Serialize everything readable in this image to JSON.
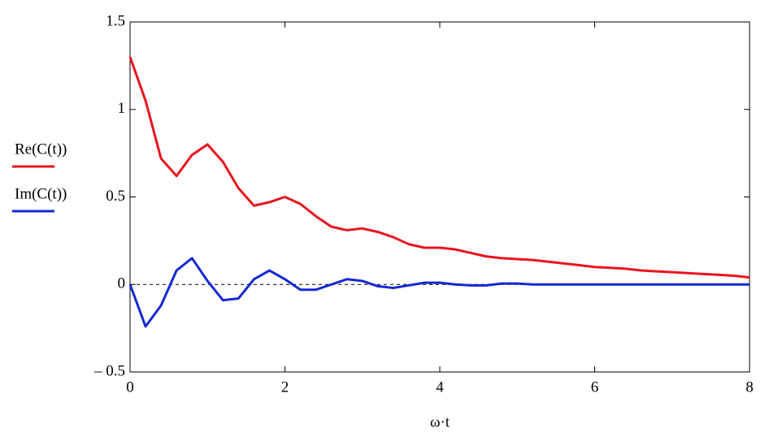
{
  "chart_data": {
    "type": "line",
    "x_label": "ω·t",
    "x": [
      0,
      0.2,
      0.4,
      0.6,
      0.8,
      1,
      1.2,
      1.4,
      1.6,
      1.8,
      2,
      2.2,
      2.4,
      2.6,
      2.8,
      3,
      3.2,
      3.4,
      3.6,
      3.8,
      4,
      4.2,
      4.4,
      4.6,
      4.8,
      5,
      5.2,
      5.4,
      5.6,
      5.8,
      6,
      6.2,
      6.4,
      6.6,
      6.8,
      7,
      7.2,
      7.4,
      7.6,
      7.8,
      8
    ],
    "series": [
      {
        "name": "Re(C(t))",
        "color": "#e8141e",
        "values": [
          1.3,
          1.05,
          0.72,
          0.62,
          0.74,
          0.8,
          0.7,
          0.55,
          0.45,
          0.47,
          0.5,
          0.46,
          0.39,
          0.33,
          0.31,
          0.32,
          0.3,
          0.27,
          0.23,
          0.21,
          0.21,
          0.2,
          0.18,
          0.16,
          0.15,
          0.145,
          0.14,
          0.13,
          0.12,
          0.11,
          0.1,
          0.095,
          0.09,
          0.08,
          0.075,
          0.07,
          0.065,
          0.06,
          0.055,
          0.05,
          0.04
        ]
      },
      {
        "name": "Im(C(t))",
        "color": "#1428d2",
        "values": [
          0,
          -0.24,
          -0.12,
          0.08,
          0.15,
          0.02,
          -0.09,
          -0.08,
          0.03,
          0.08,
          0.03,
          -0.03,
          -0.03,
          0,
          0.03,
          0.02,
          -0.01,
          -0.02,
          -0.005,
          0.01,
          0.01,
          0,
          -0.005,
          -0.005,
          0.005,
          0.005,
          0,
          0,
          0,
          0,
          0,
          0,
          0,
          0,
          0,
          0,
          0,
          0,
          0,
          0,
          0
        ]
      }
    ],
    "xlim": [
      0,
      8
    ],
    "xticks": [
      0,
      2,
      4,
      6,
      8
    ],
    "ylim": [
      -0.5,
      1.5
    ],
    "yticks": [
      {
        "value": -0.5,
        "label": "– 0.5"
      },
      0,
      0.5,
      1,
      1.5
    ],
    "zero_line": true
  }
}
